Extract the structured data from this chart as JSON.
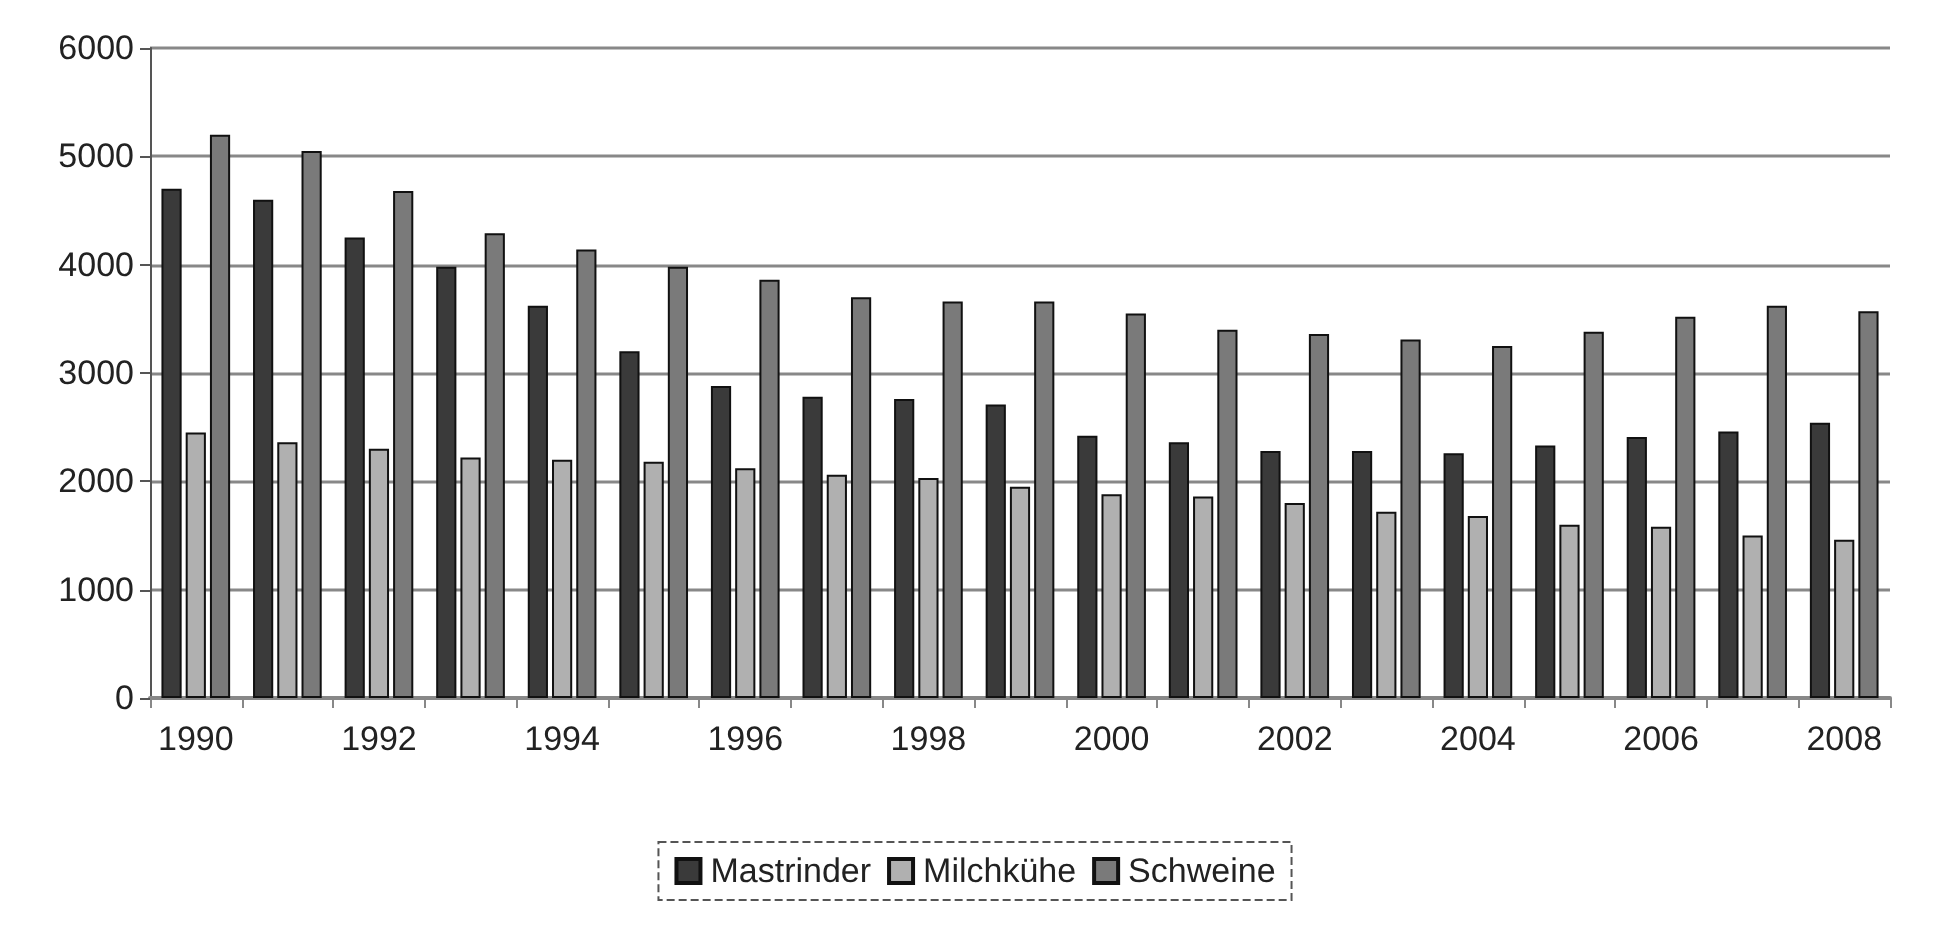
{
  "chart_data": {
    "type": "bar",
    "categories": [
      "1990",
      null,
      "1992",
      null,
      "1994",
      null,
      "1996",
      null,
      "1998",
      null,
      "2000",
      null,
      "2002",
      null,
      "2004",
      null,
      "2006",
      null,
      "2008"
    ],
    "series": [
      {
        "name": "Mastrinder",
        "color": "#3a3a3a",
        "values": [
          4700,
          4600,
          4250,
          3980,
          3620,
          3200,
          2880,
          2780,
          2760,
          2710,
          2420,
          2360,
          2280,
          2280,
          2260,
          2330,
          2410,
          2460,
          2540
        ]
      },
      {
        "name": "Milchkühe",
        "color": "#b0b0b0",
        "values": [
          2450,
          2360,
          2300,
          2220,
          2200,
          2180,
          2120,
          2060,
          2030,
          1950,
          1880,
          1860,
          1800,
          1720,
          1680,
          1600,
          1580,
          1500,
          1460
        ]
      },
      {
        "name": "Schweine",
        "color": "#7a7a7a",
        "values": [
          5200,
          5050,
          4680,
          4290,
          4140,
          3980,
          3860,
          3700,
          3660,
          3660,
          3550,
          3400,
          3360,
          3310,
          3250,
          3380,
          3520,
          3620,
          3570
        ]
      }
    ],
    "ylim": [
      0,
      6000
    ],
    "yticks": [
      0,
      1000,
      2000,
      3000,
      4000,
      5000,
      6000
    ],
    "grid": "y",
    "legend": "bottom"
  }
}
